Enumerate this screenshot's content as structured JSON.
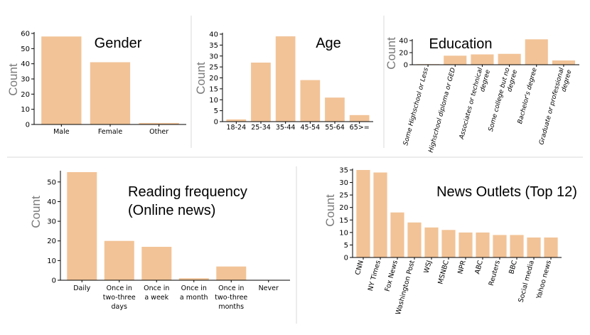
{
  "chart_data": [
    {
      "key": "gender",
      "type": "bar",
      "title_lines": [
        "Gender"
      ],
      "ylabel": "Count",
      "ylim": [
        0,
        60
      ],
      "yticks": [
        0,
        10,
        20,
        30,
        40,
        50,
        60
      ],
      "categories": [
        "Male",
        "Female",
        "Other"
      ],
      "values": [
        58,
        41,
        1
      ]
    },
    {
      "key": "age",
      "type": "bar",
      "title_lines": [
        "Age"
      ],
      "ylabel": "Count",
      "ylim": [
        0,
        40
      ],
      "yticks": [
        0,
        5,
        10,
        15,
        20,
        25,
        30,
        35,
        40
      ],
      "categories": [
        "18-24",
        "25-34",
        "35-44",
        "45-54",
        "55-64",
        "65>="
      ],
      "values": [
        1,
        27,
        39,
        19,
        11,
        3
      ]
    },
    {
      "key": "education",
      "type": "bar",
      "title_lines": [
        "Education"
      ],
      "ylabel": "Count",
      "ylim": [
        0,
        40
      ],
      "yticks": [
        0,
        20,
        40
      ],
      "categories": [
        "Some Highschool or Less",
        "Highschool diploma or GED",
        "Associates or technical degree",
        "Some college but no degree",
        "Bachelor's degree",
        "Graduate or professional degree"
      ],
      "category_lines": [
        [
          "Some Highschool or Less"
        ],
        [
          "Highschool diploma or GED"
        ],
        [
          "Associates or technical",
          "degree"
        ],
        [
          "Some college but no",
          "degree"
        ],
        [
          "Bachelor's degree"
        ],
        [
          "Graduate or professional",
          "degree"
        ]
      ],
      "values": [
        1,
        15,
        17,
        18,
        42,
        7
      ]
    },
    {
      "key": "reading",
      "type": "bar",
      "title_lines": [
        "Reading frequency",
        "(Online news)"
      ],
      "ylabel": "Count",
      "ylim": [
        0,
        55
      ],
      "yticks": [
        0,
        10,
        20,
        30,
        40,
        50
      ],
      "categories": [
        "Daily",
        "Once in two-three days",
        "Once in a week",
        "Once in a month",
        "Once in two-three months",
        "Never"
      ],
      "category_lines": [
        [
          "Daily"
        ],
        [
          "Once in",
          "two-three",
          "days"
        ],
        [
          "Once in",
          "a week"
        ],
        [
          "Once in",
          "a month"
        ],
        [
          "Once in",
          "two-three",
          "months"
        ],
        [
          "Never"
        ]
      ],
      "values": [
        55,
        20,
        17,
        1,
        7,
        0
      ]
    },
    {
      "key": "outlets",
      "type": "bar",
      "title_lines": [
        "News Outlets (Top 12)"
      ],
      "ylabel": "Count",
      "ylim": [
        0,
        35
      ],
      "yticks": [
        0,
        5,
        10,
        15,
        20,
        25,
        30,
        35
      ],
      "categories": [
        "CNN",
        "NY Times",
        "Fox News",
        "Washington Post",
        "WSJ",
        "MSNBC",
        "NPR",
        "ABC",
        "Reuters",
        "BBC",
        "Social media",
        "Yahoo news"
      ],
      "values": [
        35,
        34,
        18,
        14,
        12,
        11,
        10,
        10,
        9,
        9,
        8,
        8
      ]
    }
  ],
  "colors": {
    "bar": "#f2c397",
    "axis": "#000000",
    "divider": "#d9d9d9"
  }
}
